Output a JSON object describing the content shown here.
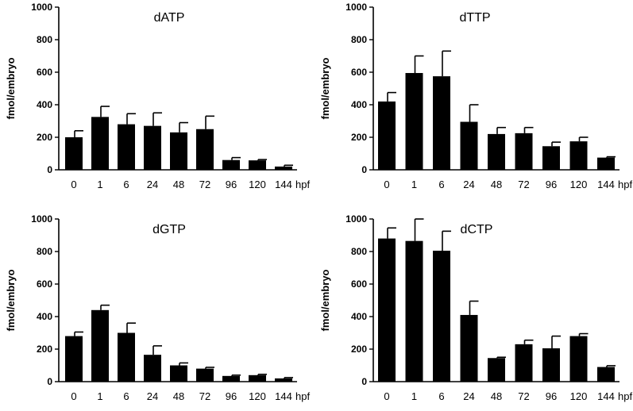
{
  "chart_data": [
    {
      "type": "bar",
      "title": "dATP",
      "ylabel": "fmol/embryo",
      "xunit": "hpf",
      "categories": [
        "0",
        "1",
        "6",
        "24",
        "48",
        "72",
        "96",
        "120",
        "144"
      ],
      "values": [
        200,
        325,
        280,
        270,
        230,
        250,
        60,
        58,
        20
      ],
      "errors": [
        40,
        65,
        65,
        80,
        60,
        80,
        15,
        5,
        8
      ],
      "ylim": [
        0,
        1000
      ],
      "yticks": [
        "0",
        "200",
        "400",
        "600",
        "800",
        "1000"
      ]
    },
    {
      "type": "bar",
      "title": "dTTP",
      "ylabel": "fmol/embryo",
      "xunit": "hpf",
      "categories": [
        "0",
        "1",
        "6",
        "24",
        "48",
        "72",
        "96",
        "120",
        "144"
      ],
      "values": [
        420,
        595,
        575,
        295,
        220,
        225,
        145,
        175,
        75
      ],
      "errors": [
        55,
        105,
        155,
        105,
        40,
        35,
        25,
        25,
        5
      ],
      "ylim": [
        0,
        1000
      ],
      "yticks": [
        "0",
        "200",
        "400",
        "600",
        "800",
        "1000"
      ]
    },
    {
      "type": "bar",
      "title": "dGTP",
      "ylabel": "fmol/embryo",
      "xunit": "hpf",
      "categories": [
        "0",
        "1",
        "6",
        "24",
        "48",
        "72",
        "96",
        "120",
        "144"
      ],
      "values": [
        280,
        440,
        300,
        165,
        100,
        80,
        35,
        40,
        20
      ],
      "errors": [
        25,
        30,
        60,
        55,
        15,
        8,
        5,
        5,
        5
      ],
      "ylim": [
        0,
        1000
      ],
      "yticks": [
        "0",
        "200",
        "400",
        "600",
        "800",
        "1000"
      ]
    },
    {
      "type": "bar",
      "title": "dCTP",
      "ylabel": "fmol/embryo",
      "xunit": "hpf",
      "categories": [
        "0",
        "1",
        "6",
        "24",
        "48",
        "72",
        "96",
        "120",
        "144"
      ],
      "values": [
        880,
        865,
        805,
        410,
        145,
        230,
        205,
        280,
        90
      ],
      "errors": [
        65,
        135,
        120,
        85,
        5,
        25,
        75,
        15,
        8
      ],
      "ylim": [
        0,
        1000
      ],
      "yticks": [
        "0",
        "200",
        "400",
        "600",
        "800",
        "1000"
      ]
    }
  ]
}
